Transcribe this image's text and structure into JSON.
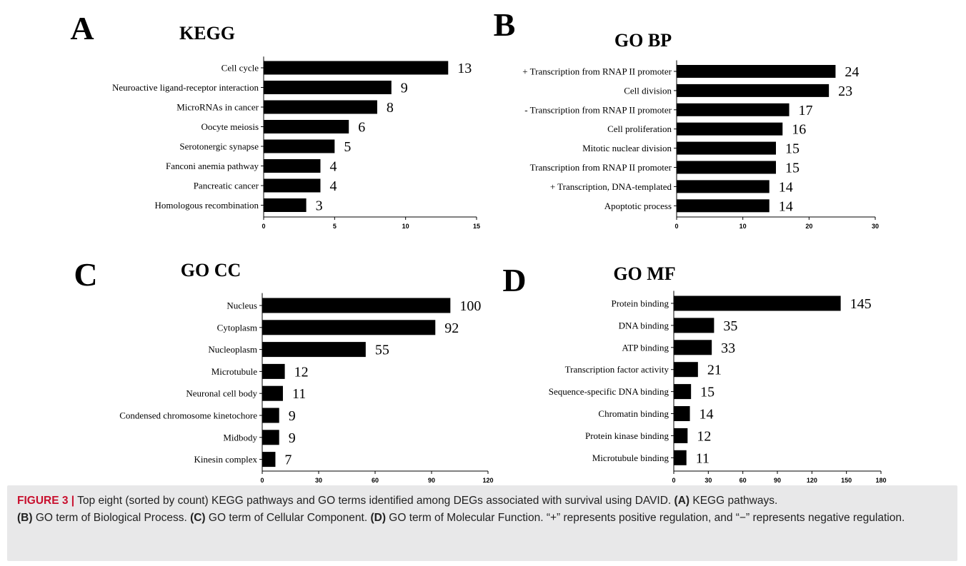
{
  "chart_data": [
    {
      "type": "bar",
      "panel_label": "A",
      "title": "KEGG",
      "categories": [
        "Cell cycle",
        "Neuroactive ligand-receptor interaction",
        "MicroRNAs in cancer",
        "Oocyte meiosis",
        "Serotonergic synapse",
        "Fanconi anemia pathway",
        "Pancreatic cancer",
        "Homologous recombination"
      ],
      "values": [
        13,
        9,
        8,
        6,
        5,
        4,
        4,
        3
      ],
      "xlim": [
        0,
        15
      ],
      "xticks": [
        "0",
        "5",
        "10",
        "15"
      ],
      "bar_color": "#000000"
    },
    {
      "type": "bar",
      "panel_label": "B",
      "title": "GO BP",
      "categories": [
        "+ Transcription from RNAP II promoter",
        "Cell division",
        "- Transcription from RNAP II promoter",
        "Cell proliferation",
        "Mitotic nuclear division",
        "Transcription from RNAP II promoter",
        "+ Transcription, DNA-templated",
        "Apoptotic process"
      ],
      "values": [
        24,
        23,
        17,
        16,
        15,
        15,
        14,
        14
      ],
      "xlim": [
        0,
        30
      ],
      "xticks": [
        "0",
        "10",
        "20",
        "30"
      ],
      "bar_color": "#000000"
    },
    {
      "type": "bar",
      "panel_label": "C",
      "title": "GO CC",
      "categories": [
        "Nucleus",
        "Cytoplasm",
        "Nucleoplasm",
        "Microtubule",
        "Neuronal cell body",
        "Condensed chromosome kinetochore",
        "Midbody",
        "Kinesin complex"
      ],
      "values": [
        100,
        92,
        55,
        12,
        11,
        9,
        9,
        7
      ],
      "xlim": [
        0,
        120
      ],
      "xticks": [
        "0",
        "30",
        "60",
        "90",
        "120"
      ],
      "bar_color": "#000000"
    },
    {
      "type": "bar",
      "panel_label": "D",
      "title": "GO MF",
      "categories": [
        "Protein binding",
        "DNA binding",
        "ATP binding",
        "Transcription factor activity",
        "Sequence-specific DNA binding",
        "Chromatin binding",
        "Protein kinase binding",
        "Microtubule binding"
      ],
      "values": [
        145,
        35,
        33,
        21,
        15,
        14,
        12,
        11
      ],
      "xlim": [
        0,
        180
      ],
      "xticks": [
        "0",
        "30",
        "60",
        "90",
        "120",
        "150",
        "180"
      ],
      "bar_color": "#000000"
    }
  ],
  "caption": {
    "label": "FIGURE 3 |",
    "intro": " Top eight (sorted by count) KEGG pathways and GO terms identified among DEGs associated with survival using DAVID. ",
    "a_tag": "(A)",
    "a_text": " KEGG pathways.",
    "b_tag": "(B)",
    "b_text": " GO term of Biological Process. ",
    "c_tag": "(C)",
    "c_text": " GO term of Cellular Component. ",
    "d_tag": "(D)",
    "d_text": " GO term of Molecular Function. “+” represents positive regulation, and “−” represents negative regulation."
  }
}
